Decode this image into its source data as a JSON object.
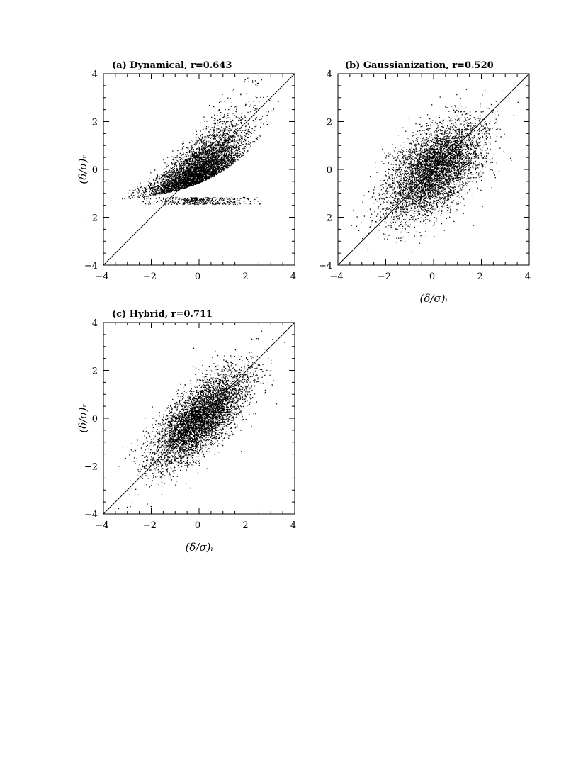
{
  "chart_data": [
    {
      "type": "scatter",
      "title": "(a) Dynamical, r=0.643",
      "xlabel": "",
      "ylabel": "(δ/σ)ᵣ",
      "xlim": [
        -4,
        4
      ],
      "ylim": [
        -4,
        4
      ],
      "xticks": [
        "−4",
        "−2",
        "0",
        "2",
        "4"
      ],
      "yticks": [
        "−4",
        "−2",
        "0",
        "2",
        "4"
      ],
      "reference_line": "y=x",
      "r": 0.643,
      "point_cloud": {
        "shape": "skewed",
        "mean_x": 0.0,
        "mean_y": -0.2,
        "sd_x": 1.0,
        "floor_y": -1.45,
        "count": 5000
      }
    },
    {
      "type": "scatter",
      "title": "(b) Gaussianization, r=0.520",
      "xlabel": "(δ/σ)ᵢ",
      "ylabel": "",
      "xlim": [
        -4,
        4
      ],
      "ylim": [
        -4,
        4
      ],
      "xticks": [
        "−4",
        "−2",
        "0",
        "2",
        "4"
      ],
      "yticks": [
        "−4",
        "−2",
        "0",
        "2",
        "4"
      ],
      "reference_line": "y=x",
      "r": 0.52,
      "point_cloud": {
        "shape": "gaussian",
        "mean_x": 0.0,
        "mean_y": 0.0,
        "sd_x": 1.0,
        "sd_y": 1.0,
        "count": 5000
      }
    },
    {
      "type": "scatter",
      "title": "(c) Hybrid, r=0.711",
      "xlabel": "(δ/σ)ᵢ",
      "ylabel": "(δ/σ)ᵣ",
      "xlim": [
        -4,
        4
      ],
      "ylim": [
        -4,
        4
      ],
      "xticks": [
        "−4",
        "−2",
        "0",
        "2",
        "4"
      ],
      "yticks": [
        "−4",
        "−2",
        "0",
        "2",
        "4"
      ],
      "reference_line": "y=x",
      "r": 0.711,
      "point_cloud": {
        "shape": "gaussian",
        "mean_x": 0.0,
        "mean_y": 0.0,
        "sd_x": 1.0,
        "sd_y": 1.0,
        "count": 5000
      }
    }
  ]
}
